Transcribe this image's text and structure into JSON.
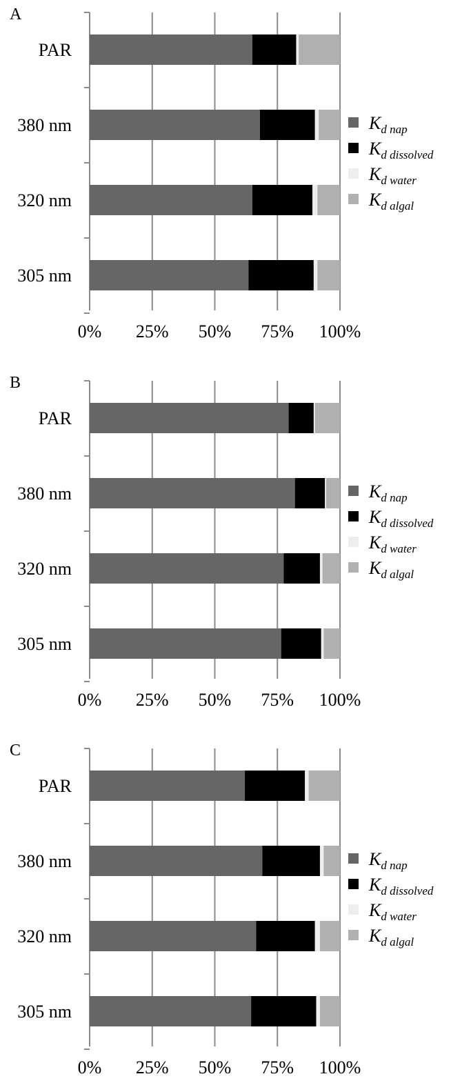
{
  "chart_data": [
    {
      "panel_label": "A",
      "type": "bar",
      "orientation": "horizontal",
      "stacked": true,
      "categories": [
        "PAR",
        "380 nm",
        "320 nm",
        "305 nm"
      ],
      "series": [
        {
          "name": "nap",
          "values": [
            65.0,
            68.0,
            65.0,
            63.5
          ]
        },
        {
          "name": "dissolved",
          "values": [
            17.5,
            22.0,
            24.0,
            26.0
          ]
        },
        {
          "name": "water",
          "values": [
            1.0,
            1.5,
            2.0,
            1.5
          ]
        },
        {
          "name": "algal",
          "values": [
            16.5,
            8.5,
            9.0,
            9.0
          ]
        }
      ],
      "xticks": [
        "0%",
        "25%",
        "50%",
        "75%",
        "100%"
      ],
      "xlim": [
        0,
        100
      ],
      "grid": true,
      "legend": "right"
    },
    {
      "panel_label": "B",
      "type": "bar",
      "orientation": "horizontal",
      "stacked": true,
      "categories": [
        "PAR",
        "380 nm",
        "320 nm",
        "305 nm"
      ],
      "series": [
        {
          "name": "nap",
          "values": [
            79.5,
            82.0,
            77.5,
            76.5
          ]
        },
        {
          "name": "dissolved",
          "values": [
            10.0,
            12.0,
            14.5,
            16.0
          ]
        },
        {
          "name": "water",
          "values": [
            0.5,
            0.5,
            1.0,
            1.0
          ]
        },
        {
          "name": "algal",
          "values": [
            10.0,
            5.5,
            7.0,
            6.5
          ]
        }
      ],
      "xticks": [
        "0%",
        "25%",
        "50%",
        "75%",
        "100%"
      ],
      "xlim": [
        0,
        100
      ],
      "grid": true,
      "legend": "right"
    },
    {
      "panel_label": "C",
      "type": "bar",
      "orientation": "horizontal",
      "stacked": true,
      "categories": [
        "PAR",
        "380 nm",
        "320 nm",
        "305 nm"
      ],
      "series": [
        {
          "name": "nap",
          "values": [
            62.0,
            69.0,
            66.5,
            64.5
          ]
        },
        {
          "name": "dissolved",
          "values": [
            24.0,
            23.0,
            23.5,
            26.0
          ]
        },
        {
          "name": "water",
          "values": [
            1.5,
            1.5,
            2.0,
            1.5
          ]
        },
        {
          "name": "algal",
          "values": [
            12.5,
            6.5,
            8.0,
            8.0
          ]
        }
      ],
      "xticks": [
        "0%",
        "25%",
        "50%",
        "75%",
        "100%"
      ],
      "xlim": [
        0,
        100
      ],
      "grid": true,
      "legend": "right"
    }
  ],
  "legend": {
    "symbol": "K",
    "subscript_prefix": "d",
    "items": [
      {
        "key": "nap",
        "label": "nap",
        "color": "#666666"
      },
      {
        "key": "dissolved",
        "label": "dissolved",
        "color": "#000000"
      },
      {
        "key": "water",
        "label": "water",
        "color": "#eeeeee"
      },
      {
        "key": "algal",
        "label": "algal",
        "color": "#b0b0b0"
      }
    ]
  },
  "colors": {
    "nap": "#666666",
    "dissolved": "#000000",
    "water": "#eeeeee",
    "algal": "#b0b0b0",
    "grid": "#8a8a8a",
    "axis": "#8a8a8a"
  }
}
